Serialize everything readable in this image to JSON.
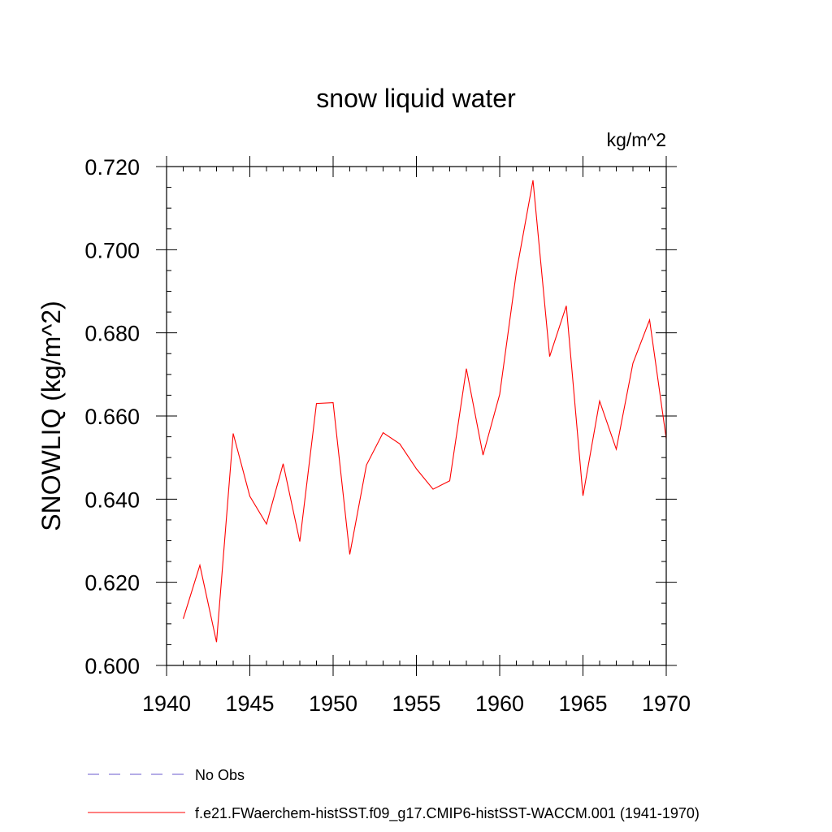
{
  "chart_data": {
    "type": "line",
    "title": "snow liquid water",
    "units": "kg/m^2",
    "ylabel": "SNOWLIQ  (kg/m^2)",
    "xlabel": "",
    "xlim": [
      1940,
      1970
    ],
    "ylim": [
      0.6,
      0.72
    ],
    "x_ticks": [
      1940,
      1945,
      1950,
      1955,
      1960,
      1965,
      1970
    ],
    "x_tick_labels": [
      "1940",
      "1945",
      "1950",
      "1955",
      "1960",
      "1965",
      "1970"
    ],
    "y_ticks": [
      0.6,
      0.62,
      0.64,
      0.66,
      0.68,
      0.7,
      0.72
    ],
    "y_tick_labels": [
      "0.600",
      "0.620",
      "0.640",
      "0.660",
      "0.680",
      "0.700",
      "0.720"
    ],
    "grid": false,
    "legend_position": "bottom-left",
    "series": [
      {
        "name": "No Obs",
        "color": "#6a5acd",
        "dash": "dashed",
        "x": [],
        "y": []
      },
      {
        "name": "f.e21.FWaerchem-histSST.f09_g17.CMIP6-histSST-WACCM.001 (1941-1970)",
        "color": "#ff0000",
        "dash": "solid",
        "x": [
          1941,
          1942,
          1943,
          1944,
          1945,
          1946,
          1947,
          1948,
          1949,
          1950,
          1951,
          1952,
          1953,
          1954,
          1955,
          1956,
          1957,
          1958,
          1959,
          1960,
          1961,
          1962,
          1963,
          1964,
          1965,
          1966,
          1967,
          1968,
          1969,
          1970
        ],
        "y": [
          0.6112,
          0.6241,
          0.6056,
          0.6558,
          0.6407,
          0.634,
          0.6485,
          0.6298,
          0.663,
          0.6632,
          0.6267,
          0.6482,
          0.656,
          0.6533,
          0.6473,
          0.6424,
          0.6444,
          0.6714,
          0.6506,
          0.6652,
          0.6946,
          0.7167,
          0.6743,
          0.6865,
          0.6408,
          0.6636,
          0.652,
          0.6727,
          0.6831,
          0.6545
        ]
      }
    ]
  }
}
